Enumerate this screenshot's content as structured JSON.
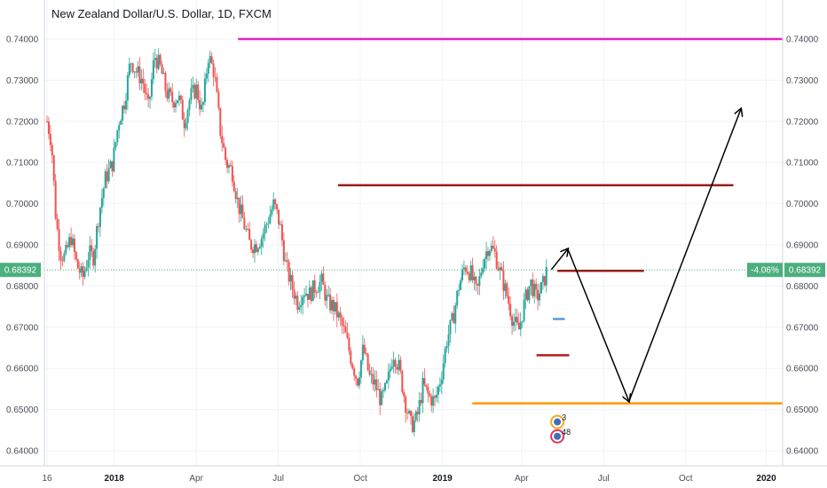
{
  "chart_data": {
    "type": "candlestick",
    "title": "New Zealand Dollar/U.S. Dollar, 1D, FXCM",
    "y_ticks": [
      "0.74000",
      "0.73000",
      "0.72000",
      "0.71000",
      "0.70000",
      "0.69000",
      "0.68000",
      "0.67000",
      "0.66000",
      "0.65000",
      "0.64000"
    ],
    "y_tick_values": [
      0.74,
      0.73,
      0.72,
      0.71,
      0.7,
      0.69,
      0.68,
      0.67,
      0.66,
      0.65,
      0.64
    ],
    "ylim": [
      0.6365,
      0.748
    ],
    "x_ticks": [
      {
        "label": "16",
        "t": 0.0,
        "bold": false
      },
      {
        "label": "2018",
        "t": 0.45,
        "bold": true
      },
      {
        "label": "Apr",
        "t": 1.0,
        "bold": false
      },
      {
        "label": "Jul",
        "t": 1.55,
        "bold": false
      },
      {
        "label": "Oct",
        "t": 2.1,
        "bold": false
      },
      {
        "label": "2019",
        "t": 2.65,
        "bold": true
      },
      {
        "label": "Apr",
        "t": 3.18,
        "bold": false
      },
      {
        "label": "Jul",
        "t": 3.73,
        "bold": false
      },
      {
        "label": "Oct",
        "t": 4.28,
        "bold": false
      },
      {
        "label": "2020",
        "t": 4.82,
        "bold": true
      }
    ],
    "xlim": [
      0.0,
      4.9
    ],
    "price_path": [
      [
        0.0,
        0.72
      ],
      [
        0.03,
        0.715
      ],
      [
        0.06,
        0.696
      ],
      [
        0.09,
        0.688
      ],
      [
        0.12,
        0.687
      ],
      [
        0.16,
        0.692
      ],
      [
        0.2,
        0.685
      ],
      [
        0.24,
        0.682
      ],
      [
        0.28,
        0.688
      ],
      [
        0.31,
        0.687
      ],
      [
        0.35,
        0.698
      ],
      [
        0.39,
        0.706
      ],
      [
        0.44,
        0.71
      ],
      [
        0.48,
        0.72
      ],
      [
        0.52,
        0.725
      ],
      [
        0.56,
        0.735
      ],
      [
        0.6,
        0.732
      ],
      [
        0.64,
        0.73
      ],
      [
        0.68,
        0.723
      ],
      [
        0.72,
        0.736
      ],
      [
        0.76,
        0.733
      ],
      [
        0.8,
        0.727
      ],
      [
        0.84,
        0.725
      ],
      [
        0.88,
        0.726
      ],
      [
        0.92,
        0.72
      ],
      [
        0.96,
        0.726
      ],
      [
        1.0,
        0.728
      ],
      [
        1.04,
        0.722
      ],
      [
        1.08,
        0.736
      ],
      [
        1.12,
        0.732
      ],
      [
        1.16,
        0.718
      ],
      [
        1.2,
        0.71
      ],
      [
        1.24,
        0.708
      ],
      [
        1.28,
        0.7
      ],
      [
        1.32,
        0.695
      ],
      [
        1.36,
        0.69
      ],
      [
        1.4,
        0.69
      ],
      [
        1.44,
        0.692
      ],
      [
        1.48,
        0.696
      ],
      [
        1.52,
        0.7
      ],
      [
        1.56,
        0.695
      ],
      [
        1.6,
        0.685
      ],
      [
        1.64,
        0.68
      ],
      [
        1.68,
        0.676
      ],
      [
        1.72,
        0.679
      ],
      [
        1.76,
        0.678
      ],
      [
        1.8,
        0.68
      ],
      [
        1.84,
        0.681
      ],
      [
        1.88,
        0.676
      ],
      [
        1.92,
        0.675
      ],
      [
        1.96,
        0.672
      ],
      [
        2.0,
        0.668
      ],
      [
        2.04,
        0.662
      ],
      [
        2.08,
        0.657
      ],
      [
        2.12,
        0.665
      ],
      [
        2.16,
        0.658
      ],
      [
        2.2,
        0.656
      ],
      [
        2.24,
        0.652
      ],
      [
        2.28,
        0.656
      ],
      [
        2.32,
        0.664
      ],
      [
        2.36,
        0.66
      ],
      [
        2.4,
        0.652
      ],
      [
        2.44,
        0.646
      ],
      [
        2.48,
        0.648
      ],
      [
        2.52,
        0.656
      ],
      [
        2.56,
        0.653
      ],
      [
        2.6,
        0.652
      ],
      [
        2.64,
        0.658
      ],
      [
        2.68,
        0.667
      ],
      [
        2.72,
        0.672
      ],
      [
        2.76,
        0.68
      ],
      [
        2.8,
        0.685
      ],
      [
        2.84,
        0.683
      ],
      [
        2.88,
        0.678
      ],
      [
        2.92,
        0.686
      ],
      [
        2.96,
        0.69
      ],
      [
        3.0,
        0.688
      ],
      [
        3.04,
        0.683
      ],
      [
        3.08,
        0.678
      ],
      [
        3.12,
        0.672
      ],
      [
        3.16,
        0.669
      ],
      [
        3.2,
        0.676
      ],
      [
        3.24,
        0.681
      ],
      [
        3.28,
        0.677
      ],
      [
        3.32,
        0.68
      ],
      [
        3.35,
        0.6839
      ]
    ],
    "last_price": "0.68392",
    "change_percent": "-4.06%",
    "drawings": [
      {
        "name": "magenta-level",
        "color": "#e91ec3",
        "y": 0.74,
        "x1": 1.28,
        "x2": 5.6
      },
      {
        "name": "dark-red-upper-level",
        "color": "#9b1c1c",
        "y": 0.7045,
        "x1": 1.95,
        "x2": 4.6
      },
      {
        "name": "dark-red-mid-level",
        "color": "#9b1c1c",
        "y": 0.6837,
        "x1": 3.42,
        "x2": 4.0
      },
      {
        "name": "dark-red-low-level",
        "color": "#b71c1c",
        "y": 0.6632,
        "x1": 3.28,
        "x2": 3.5
      },
      {
        "name": "blue-marker",
        "color": "#5b9bd5",
        "y": 0.672,
        "x1": 3.39,
        "x2": 3.47
      },
      {
        "name": "orange-support",
        "color": "#ff9800",
        "y": 0.6515,
        "x1": 2.85,
        "x2": 5.27
      }
    ],
    "projection_path": [
      [
        3.38,
        0.684
      ],
      [
        3.49,
        0.689
      ],
      [
        3.9,
        0.652
      ],
      [
        4.65,
        0.723
      ]
    ],
    "events": [
      {
        "label": "3",
        "x": 3.42,
        "y": 0.647,
        "ring": "#f4a622"
      },
      {
        "label": "48",
        "x": 3.42,
        "y": 0.6435,
        "ring": "#e0325c"
      }
    ],
    "grid": true,
    "candle_up_color": "#26a69a",
    "candle_down_color": "#ef5350",
    "badge_color": "#4caf7d"
  }
}
